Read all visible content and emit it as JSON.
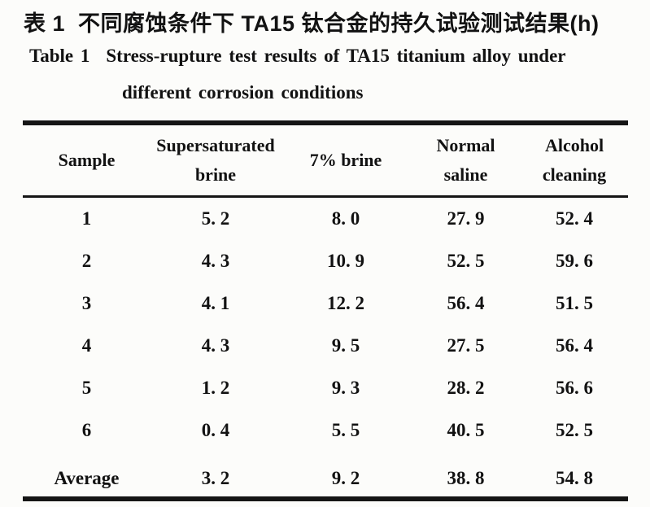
{
  "title": {
    "zh_label": "表 1",
    "zh_text": "不同腐蚀条件下 TA15 钛合金的持久试验测试结果(h)",
    "en_label": "Table 1",
    "en_line1": "Stress-rupture test results of TA15 titanium alloy under",
    "en_line2": "different corrosion conditions"
  },
  "table": {
    "headers": [
      "Sample",
      "Supersaturated brine",
      "7% brine",
      "Normal saline",
      "Alcohol cleaning"
    ],
    "rows": [
      [
        "1",
        "5. 2",
        "8. 0",
        "27. 9",
        "52. 4"
      ],
      [
        "2",
        "4. 3",
        "10. 9",
        "52. 5",
        "59. 6"
      ],
      [
        "3",
        "4. 1",
        "12. 2",
        "56. 4",
        "51. 5"
      ],
      [
        "4",
        "4. 3",
        "9. 5",
        "27. 5",
        "56. 4"
      ],
      [
        "5",
        "1. 2",
        "9. 3",
        "28. 2",
        "56. 6"
      ],
      [
        "6",
        "0. 4",
        "5. 5",
        "40. 5",
        "52. 5"
      ],
      [
        "Average",
        "3. 2",
        "9. 2",
        "38. 8",
        "54. 8"
      ]
    ]
  },
  "colors": {
    "text": "#121212",
    "rule": "#151515",
    "background": "#fcfcfa"
  }
}
